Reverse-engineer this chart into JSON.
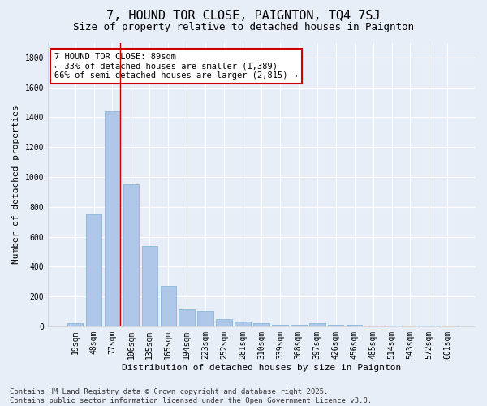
{
  "title": "7, HOUND TOR CLOSE, PAIGNTON, TQ4 7SJ",
  "subtitle": "Size of property relative to detached houses in Paignton",
  "xlabel": "Distribution of detached houses by size in Paignton",
  "ylabel": "Number of detached properties",
  "categories": [
    "19sqm",
    "48sqm",
    "77sqm",
    "106sqm",
    "135sqm",
    "165sqm",
    "194sqm",
    "223sqm",
    "252sqm",
    "281sqm",
    "310sqm",
    "339sqm",
    "368sqm",
    "397sqm",
    "426sqm",
    "456sqm",
    "485sqm",
    "514sqm",
    "543sqm",
    "572sqm",
    "601sqm"
  ],
  "values": [
    20,
    750,
    1440,
    950,
    535,
    270,
    115,
    100,
    50,
    30,
    20,
    10,
    10,
    20,
    10,
    10,
    5,
    5,
    5,
    5,
    5
  ],
  "bar_color": "#aec6e8",
  "bar_edge_color": "#7aafd4",
  "background_color": "#e8eef8",
  "grid_color": "#ffffff",
  "annotation_box_color": "#ffffff",
  "annotation_box_edge": "#cc0000",
  "red_line_x": 2.42,
  "annotation_title": "7 HOUND TOR CLOSE: 89sqm",
  "annotation_line1": "← 33% of detached houses are smaller (1,389)",
  "annotation_line2": "66% of semi-detached houses are larger (2,815) →",
  "footer_line1": "Contains HM Land Registry data © Crown copyright and database right 2025.",
  "footer_line2": "Contains public sector information licensed under the Open Government Licence v3.0.",
  "ylim": [
    0,
    1900
  ],
  "yticks": [
    0,
    200,
    400,
    600,
    800,
    1000,
    1200,
    1400,
    1600,
    1800
  ],
  "title_fontsize": 11,
  "subtitle_fontsize": 9,
  "axis_label_fontsize": 8,
  "tick_fontsize": 7,
  "annotation_fontsize": 7.5,
  "footer_fontsize": 6.5
}
